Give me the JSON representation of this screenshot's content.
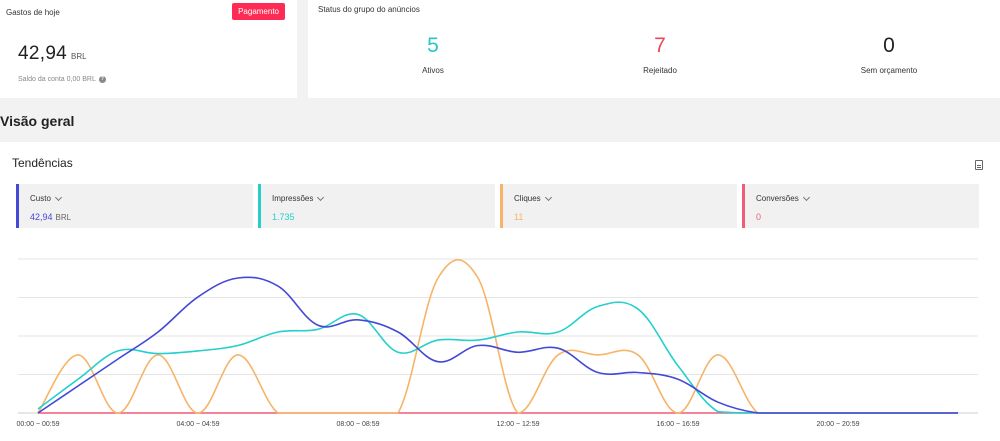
{
  "today_spend": {
    "title": "Gastos de hoje",
    "button_label": "Pagamento",
    "amount": "42,94",
    "currency": "BRL",
    "balance_text": "Saldo da conta 0,00 BRL",
    "help_icon": "question-circle-icon"
  },
  "ad_group_status": {
    "title": "Status do grupo do anúncios",
    "items": [
      {
        "value": "5",
        "label": "Ativos",
        "color": "#28c6c6"
      },
      {
        "value": "7",
        "label": "Rejeitado",
        "color": "#f0455a"
      },
      {
        "value": "0",
        "label": "Sem orçamento",
        "color": "#222222"
      }
    ]
  },
  "overview": {
    "title": "Visão geral"
  },
  "trends": {
    "title": "Tendências",
    "export_icon": "document-icon",
    "metrics": [
      {
        "label": "Custo",
        "value": "42,94",
        "unit": "BRL",
        "color": "#4349d6"
      },
      {
        "label": "Impressões",
        "value": "1.735",
        "unit": "",
        "color": "#25d0cc"
      },
      {
        "label": "Cliques",
        "value": "11",
        "unit": "",
        "color": "#f7b367"
      },
      {
        "label": "Conversões",
        "value": "0",
        "unit": "",
        "color": "#f25c76"
      }
    ]
  },
  "chart_data": {
    "type": "line",
    "x_ticks": [
      "00:00 ~ 00:59",
      "04:00 ~ 04:59",
      "08:00 ~ 08:59",
      "12:00 ~ 12:59",
      "16:00 ~ 16:59",
      "20:00 ~ 20:59"
    ],
    "x": [
      0,
      1,
      2,
      3,
      4,
      5,
      6,
      7,
      8,
      9,
      10,
      11,
      12,
      13,
      14,
      15,
      16,
      17,
      18,
      19,
      20,
      21,
      22,
      23
    ],
    "series": [
      {
        "name": "Custo",
        "color": "#4349d6",
        "values": [
          0,
          0.2,
          0.4,
          0.6,
          0.86,
          1.0,
          0.94,
          0.65,
          0.69,
          0.6,
          0.38,
          0.5,
          0.45,
          0.48,
          0.3,
          0.3,
          0.25,
          0.08,
          0,
          0,
          0,
          0,
          0,
          0
        ]
      },
      {
        "name": "Impressões",
        "color": "#25d0cc",
        "values": [
          0.03,
          0.25,
          0.46,
          0.44,
          0.46,
          0.5,
          0.6,
          0.62,
          0.73,
          0.45,
          0.54,
          0.54,
          0.6,
          0.6,
          0.79,
          0.77,
          0.35,
          0.01,
          0,
          0,
          0,
          0,
          0,
          0
        ]
      },
      {
        "name": "Cliques",
        "color": "#f7b367",
        "values": [
          0,
          0.43,
          0,
          0.43,
          0,
          0.43,
          0,
          0,
          0,
          0,
          1.0,
          1.0,
          0,
          0.43,
          0.43,
          0.43,
          0,
          0.43,
          0,
          0,
          0,
          0,
          0,
          0
        ]
      },
      {
        "name": "Conversões",
        "color": "#f25c76",
        "values": [
          0,
          0,
          0,
          0,
          0,
          0,
          0,
          0,
          0,
          0,
          0,
          0,
          0,
          0,
          0,
          0,
          0,
          0,
          0,
          0,
          0,
          0,
          0,
          0
        ]
      }
    ],
    "ylim": [
      0,
      1
    ],
    "grid": true,
    "legend": "top"
  }
}
